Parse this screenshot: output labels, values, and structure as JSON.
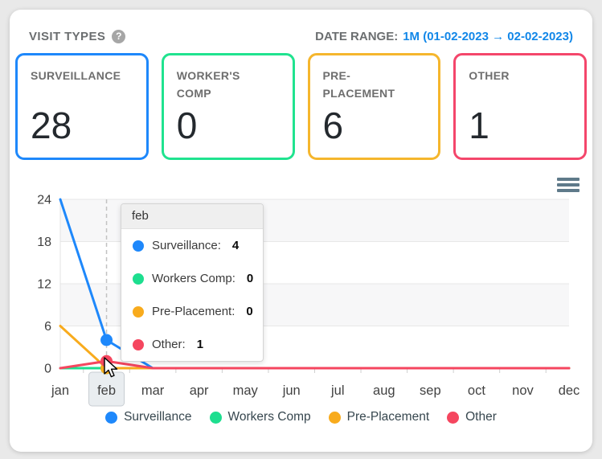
{
  "header": {
    "title": "VISIT TYPES",
    "help_icon": "question-mark",
    "date_range_label": "DATE RANGE:",
    "date_range_value": "1M (01-02-2023 → 02-02-2023)"
  },
  "colors": {
    "surveillance": "#1e88fb",
    "workers_comp": "#1dde8f",
    "pre_placement": "#f8ab1d",
    "other": "#f5465f",
    "card_blue": "#1e88fb",
    "card_green": "#20e38f",
    "card_amber": "#f5b62d",
    "card_red": "#f4466b",
    "accent_blue": "#1287e8"
  },
  "cards": [
    {
      "label": "SURVEILLANCE",
      "value": "28",
      "color": "#1e88fb"
    },
    {
      "label": "WORKER'S COMP",
      "value": "0",
      "color": "#20e38f"
    },
    {
      "label": "PRE-PLACEMENT",
      "value": "6",
      "color": "#f5b62d"
    },
    {
      "label": "OTHER",
      "value": "1",
      "color": "#f4466b"
    }
  ],
  "chart_data": {
    "type": "line",
    "title": "",
    "xlabel": "",
    "ylabel": "",
    "categories": [
      "jan",
      "feb",
      "mar",
      "apr",
      "may",
      "jun",
      "jul",
      "aug",
      "sep",
      "oct",
      "nov",
      "dec"
    ],
    "series": [
      {
        "name": "Surveillance",
        "color": "#1e88fb",
        "values": [
          24,
          4,
          0,
          0,
          0,
          0,
          0,
          0,
          0,
          0,
          0,
          0
        ]
      },
      {
        "name": "Workers Comp",
        "color": "#1dde8f",
        "values": [
          0,
          0,
          0,
          0,
          0,
          0,
          0,
          0,
          0,
          0,
          0,
          0
        ]
      },
      {
        "name": "Pre-Placement",
        "color": "#f8ab1d",
        "values": [
          6,
          0,
          0,
          0,
          0,
          0,
          0,
          0,
          0,
          0,
          0,
          0
        ]
      },
      {
        "name": "Other",
        "color": "#f5465f",
        "values": [
          0,
          1,
          0,
          0,
          0,
          0,
          0,
          0,
          0,
          0,
          0,
          0
        ]
      }
    ],
    "ylim": [
      0,
      24
    ],
    "yticks": [
      0,
      6,
      12,
      18,
      24
    ],
    "grid": true,
    "legend_position": "bottom",
    "hover": {
      "category": "feb",
      "index": 1
    }
  },
  "tooltip": {
    "title": "feb",
    "rows": [
      {
        "label": "Surveillance:",
        "value": "4",
        "color": "#1e88fb"
      },
      {
        "label": "Workers Comp:",
        "value": "0",
        "color": "#1dde8f"
      },
      {
        "label": "Pre-Placement:",
        "value": "0",
        "color": "#f8ab1d"
      },
      {
        "label": "Other:",
        "value": "1",
        "color": "#f5465f"
      }
    ]
  },
  "legend": [
    {
      "label": "Surveillance",
      "color": "#1e88fb"
    },
    {
      "label": "Workers Comp",
      "color": "#1dde8f"
    },
    {
      "label": "Pre-Placement",
      "color": "#f8ab1d"
    },
    {
      "label": "Other",
      "color": "#f5465f"
    }
  ]
}
